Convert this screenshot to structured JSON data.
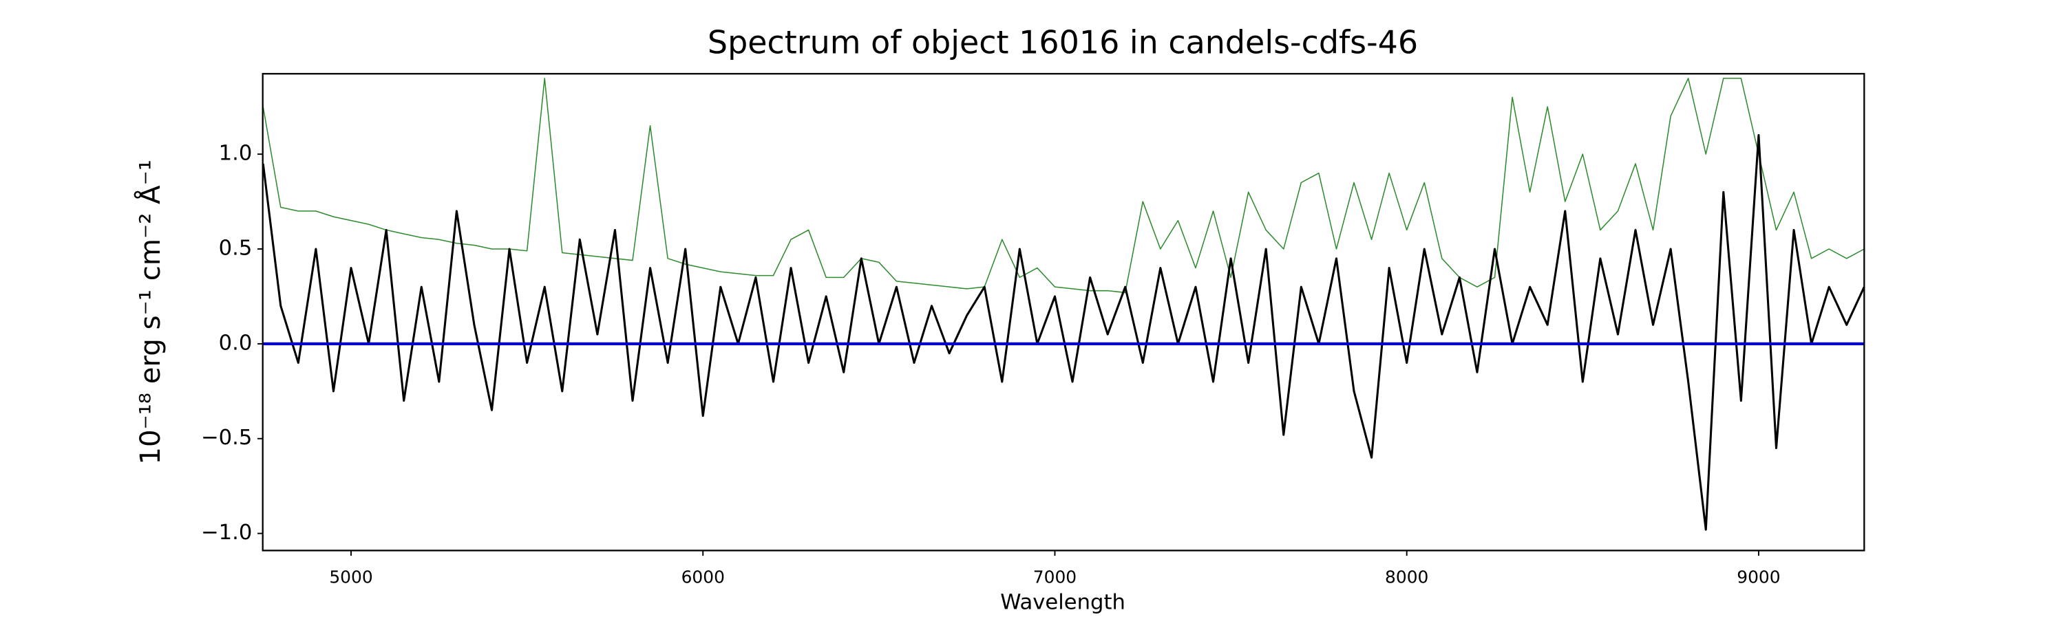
{
  "chart_data": {
    "type": "line",
    "title": "Spectrum of object 16016 in candels-cdfs-46",
    "xlabel": "Wavelength",
    "ylabel": "10⁻¹⁸ erg s⁻¹ cm⁻² Å⁻¹",
    "x": [
      4750,
      4800,
      4850,
      4900,
      4950,
      5000,
      5050,
      5100,
      5150,
      5200,
      5250,
      5300,
      5350,
      5400,
      5450,
      5500,
      5550,
      5600,
      5650,
      5700,
      5750,
      5800,
      5850,
      5900,
      5950,
      6000,
      6050,
      6100,
      6150,
      6200,
      6250,
      6300,
      6350,
      6400,
      6450,
      6500,
      6550,
      6600,
      6650,
      6700,
      6750,
      6800,
      6850,
      6900,
      6950,
      7000,
      7050,
      7100,
      7150,
      7200,
      7250,
      7300,
      7350,
      7400,
      7450,
      7500,
      7550,
      7600,
      7650,
      7700,
      7750,
      7800,
      7850,
      7900,
      7950,
      8000,
      8050,
      8100,
      8150,
      8200,
      8250,
      8300,
      8350,
      8400,
      8450,
      8500,
      8550,
      8600,
      8650,
      8700,
      8750,
      8800,
      8850,
      8900,
      8950,
      9000,
      9050,
      9100,
      9150,
      9200,
      9250,
      9300
    ],
    "series": [
      {
        "color": "#000000",
        "values": [
          0.95,
          0.2,
          -0.1,
          0.5,
          -0.25,
          0.4,
          0.0,
          0.6,
          -0.3,
          0.3,
          -0.2,
          0.7,
          0.1,
          -0.35,
          0.5,
          -0.1,
          0.3,
          -0.25,
          0.55,
          0.05,
          0.6,
          -0.3,
          0.4,
          -0.1,
          0.5,
          -0.38,
          0.3,
          0.0,
          0.35,
          -0.2,
          0.4,
          -0.1,
          0.25,
          -0.15,
          0.45,
          0.0,
          0.3,
          -0.1,
          0.2,
          -0.05,
          0.15,
          0.3,
          -0.2,
          0.5,
          0.0,
          0.25,
          -0.2,
          0.35,
          0.05,
          0.3,
          -0.1,
          0.4,
          0.0,
          0.3,
          -0.2,
          0.45,
          -0.1,
          0.5,
          -0.48,
          0.3,
          0.0,
          0.45,
          -0.25,
          -0.6,
          0.4,
          -0.1,
          0.5,
          0.05,
          0.35,
          -0.15,
          0.5,
          0.0,
          0.3,
          0.1,
          0.7,
          -0.2,
          0.45,
          0.05,
          0.6,
          0.1,
          0.5,
          -0.2,
          -0.98,
          0.8,
          -0.3,
          1.1,
          -0.55,
          0.6,
          0.0,
          0.3,
          0.1,
          0.3
        ]
      },
      {
        "color": "#2e8b2e",
        "values": [
          1.25,
          0.72,
          0.7,
          0.7,
          0.67,
          0.65,
          0.63,
          0.6,
          0.58,
          0.56,
          0.55,
          0.53,
          0.52,
          0.5,
          0.5,
          0.49,
          1.4,
          0.48,
          0.47,
          0.46,
          0.45,
          0.44,
          1.15,
          0.45,
          0.42,
          0.4,
          0.38,
          0.37,
          0.36,
          0.36,
          0.55,
          0.6,
          0.35,
          0.35,
          0.45,
          0.43,
          0.33,
          0.32,
          0.31,
          0.3,
          0.29,
          0.3,
          0.55,
          0.35,
          0.4,
          0.3,
          0.29,
          0.28,
          0.28,
          0.27,
          0.75,
          0.5,
          0.65,
          0.4,
          0.7,
          0.35,
          0.8,
          0.6,
          0.5,
          0.85,
          0.9,
          0.5,
          0.85,
          0.55,
          0.9,
          0.6,
          0.85,
          0.45,
          0.35,
          0.3,
          0.35,
          1.3,
          0.8,
          1.25,
          0.75,
          1.0,
          0.6,
          0.7,
          0.95,
          0.6,
          1.2,
          1.4,
          1.0,
          1.4,
          1.4,
          1.0,
          0.6,
          0.8,
          0.45,
          0.5,
          0.45,
          0.5
        ]
      },
      {
        "color": "#0000cc",
        "x": [
          4750,
          9300
        ],
        "values": [
          0,
          0
        ]
      }
    ],
    "xlim": [
      4749,
      9300
    ],
    "ylim": [
      -1.09,
      1.424
    ],
    "xticks": [
      5000,
      6000,
      7000,
      8000,
      9000
    ],
    "yticks": [
      {
        "value": -1.0,
        "label": "−1.0"
      },
      {
        "value": -0.5,
        "label": "−0.5"
      },
      {
        "value": 0.0,
        "label": "0.0"
      },
      {
        "value": 0.5,
        "label": "0.5"
      },
      {
        "value": 1.0,
        "label": "1.0"
      }
    ],
    "grid": false
  }
}
